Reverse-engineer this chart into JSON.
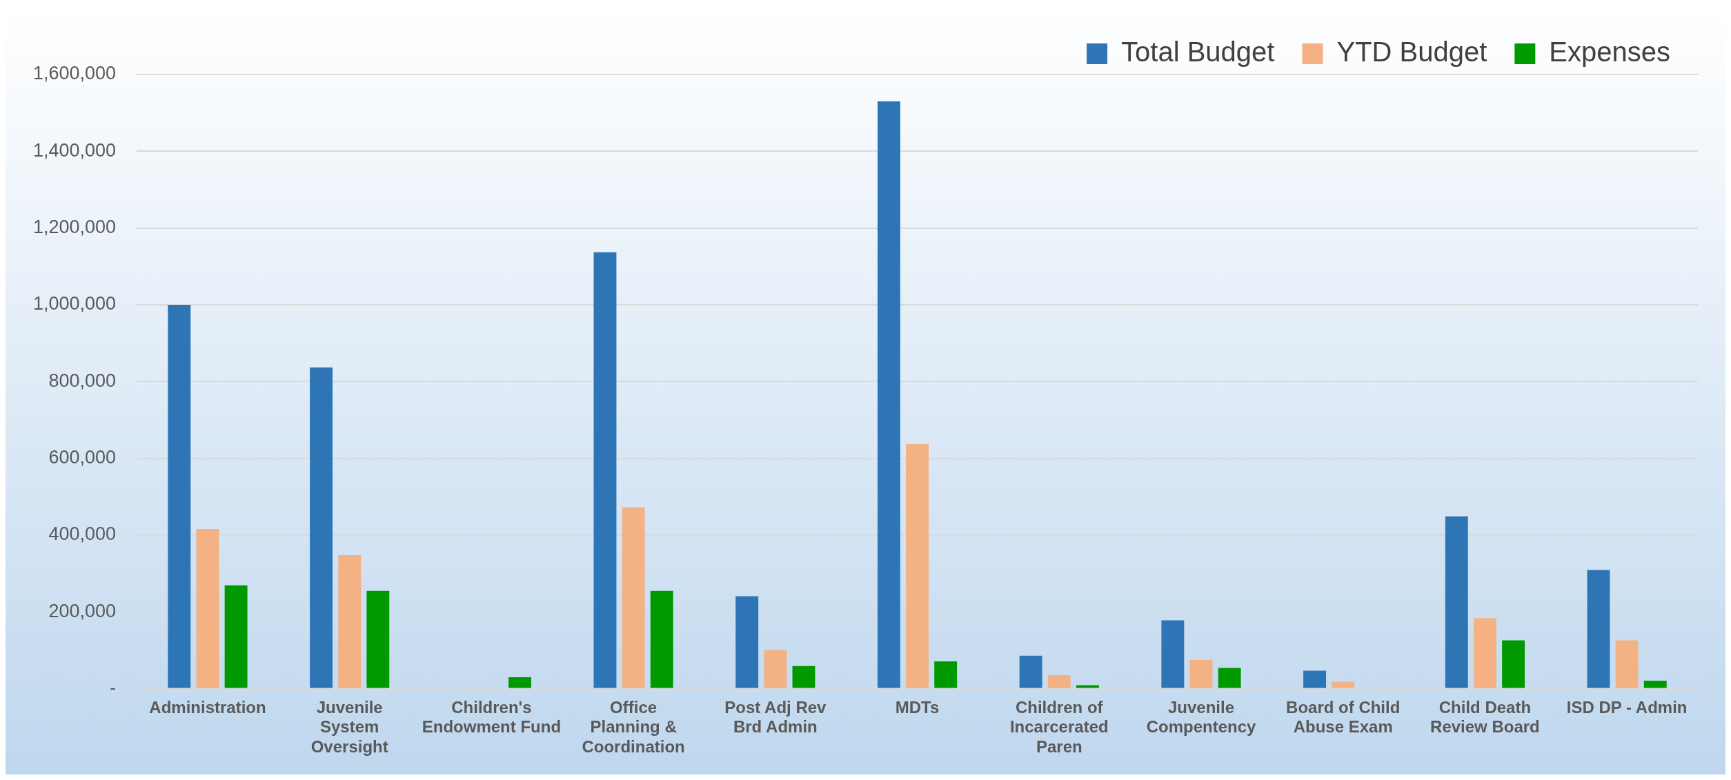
{
  "chart_data": {
    "type": "bar",
    "categories": [
      "Administration",
      "Juvenile System Oversight",
      "Children's Endowment Fund",
      "Office Planning & Coordination",
      "Post Adj Rev Brd Admin",
      "MDTs",
      "Children of Incarcerated Paren",
      "Juvenile Compentency",
      "Board of Child Abuse Exam",
      "Child Death Review Board",
      "ISD DP - Admin"
    ],
    "series": [
      {
        "name": "Total Budget",
        "color": "#2e75b6",
        "values": [
          1000000,
          837000,
          0,
          1137000,
          241000,
          1530000,
          86000,
          178000,
          47000,
          449000,
          309000
        ]
      },
      {
        "name": "YTD Budget",
        "color": "#f4b183",
        "values": [
          416000,
          348000,
          0,
          472000,
          101000,
          637000,
          35000,
          75000,
          18000,
          184000,
          126000
        ]
      },
      {
        "name": "Expenses",
        "color": "#009900",
        "values": [
          269000,
          255000,
          30000,
          255000,
          59000,
          71000,
          9000,
          54000,
          0,
          126000,
          21000
        ]
      }
    ],
    "ylim": [
      0,
      1600000
    ],
    "yticks": [
      {
        "value": 0,
        "label": "-"
      },
      {
        "value": 200000,
        "label": "200,000"
      },
      {
        "value": 400000,
        "label": "400,000"
      },
      {
        "value": 600000,
        "label": "600,000"
      },
      {
        "value": 800000,
        "label": "800,000"
      },
      {
        "value": 1000000,
        "label": "1,000,000"
      },
      {
        "value": 1200000,
        "label": "1,200,000"
      },
      {
        "value": 1400000,
        "label": "1,400,000"
      },
      {
        "value": 1600000,
        "label": "1,600,000"
      }
    ],
    "grid": "y",
    "legend": "top right"
  }
}
